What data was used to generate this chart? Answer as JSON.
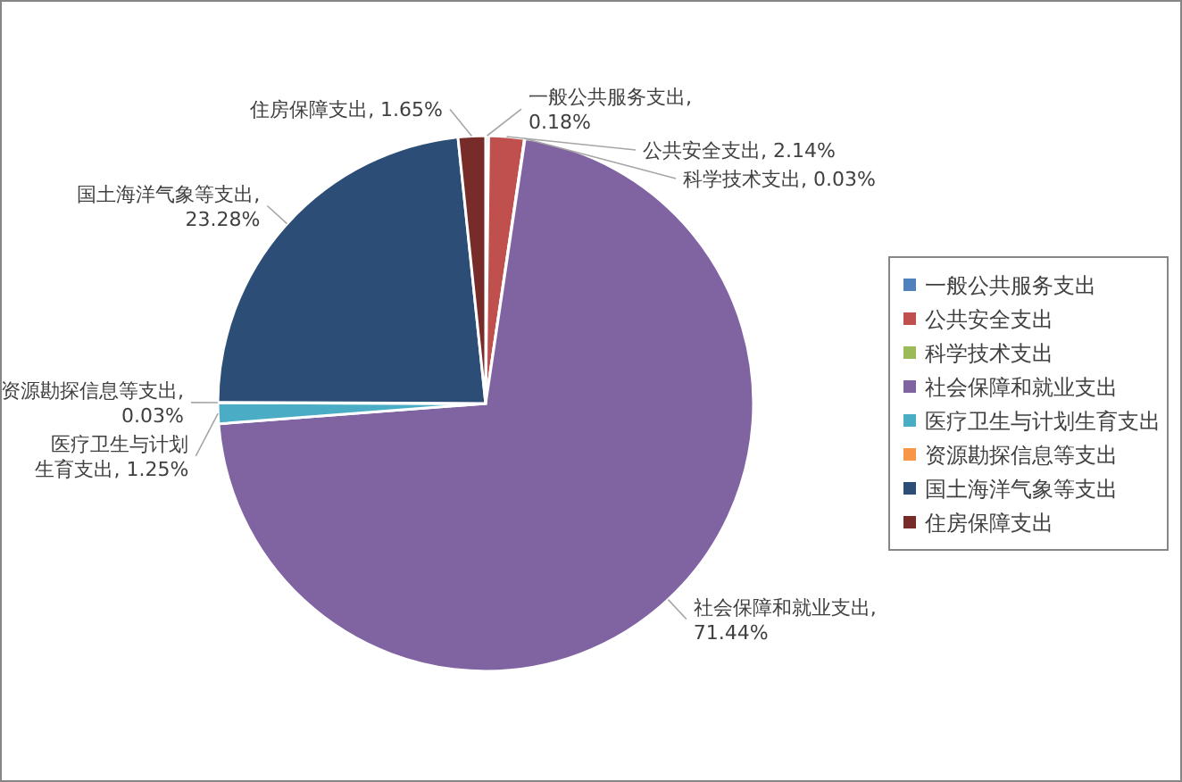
{
  "chart_data": {
    "type": "pie",
    "categories": [
      "一般公共服务支出",
      "公共安全支出",
      "科学技术支出",
      "社会保障和就业支出",
      "医疗卫生与计划生育支出",
      "资源勘探信息等支出",
      "国土海洋气象等支出",
      "住房保障支出"
    ],
    "values": [
      0.18,
      2.14,
      0.03,
      71.44,
      1.25,
      0.03,
      23.28,
      1.65
    ],
    "colors": [
      "#4f81bd",
      "#c0504d",
      "#9bbb59",
      "#8064a2",
      "#4bacc6",
      "#f79646",
      "#2c4d75",
      "#772c2a"
    ],
    "value_labels": [
      "一般公共服务支出,\n0.18%",
      "公共安全支出, 2.14%",
      "科学技术支出, 0.03%",
      "社会保障和就业支出,\n71.44%",
      "医疗卫生与计划生育支出, 1.25%",
      "资源勘探信息等支出,\n0.03%",
      "国土海洋气象等支出,\n23.28%",
      "住房保障支出, 1.65%"
    ],
    "legend": "right"
  }
}
